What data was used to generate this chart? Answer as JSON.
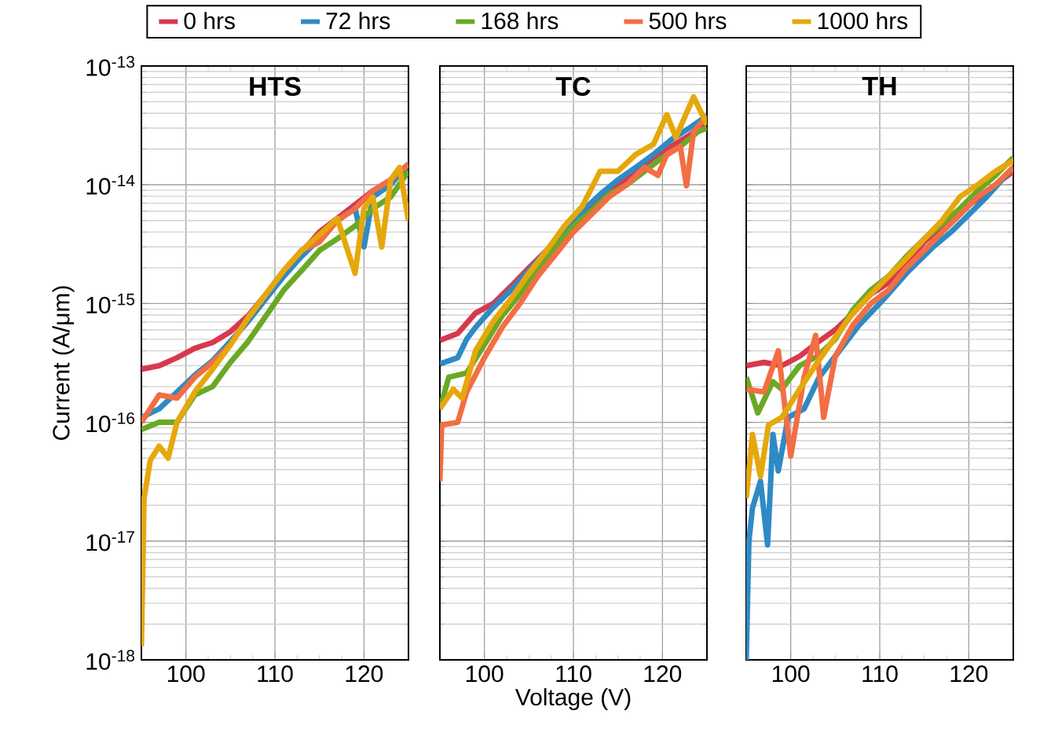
{
  "chart_data": [
    {
      "type": "line",
      "title": "HTS",
      "ylabel": "Current (A/μm)",
      "log": "y",
      "grid": true,
      "legend": "top",
      "xlim": [
        95,
        125
      ],
      "xticks": [
        100,
        110,
        120
      ],
      "ylim": [
        1e-18,
        1e-13
      ],
      "yticks": [
        {
          "value": 1e-18,
          "label": "10$^{-18}$"
        },
        {
          "value": 1e-17,
          "label": "10$^{-17}$"
        },
        {
          "value": 1e-16,
          "label": "10$^{-16}$"
        },
        {
          "value": 1e-15,
          "label": "10$^{-15}$"
        },
        {
          "value": 1e-14,
          "label": "10$^{-14}$"
        },
        {
          "value": 1e-13,
          "label": "10$^{-13}$"
        }
      ],
      "series": [
        {
          "name": "0 hrs",
          "color": "#d7394f",
          "x": [
            95,
            97,
            99,
            101,
            103,
            105,
            107,
            109,
            111,
            113,
            115,
            117,
            119,
            121,
            123,
            125
          ],
          "values": [
            2.8e-16,
            3e-16,
            3.5e-16,
            4.2e-16,
            4.7e-16,
            5.8e-16,
            7.9e-16,
            1.2e-15,
            1.8e-15,
            2.7e-15,
            4e-15,
            5.2e-15,
            6.8e-15,
            8.9e-15,
            1.1e-14,
            1.3e-14
          ]
        },
        {
          "name": "72 hrs",
          "color": "#2f8ac4",
          "x": [
            95,
            97,
            99,
            101,
            103,
            105,
            107,
            109,
            111,
            113,
            115,
            117,
            119,
            120,
            121,
            123,
            125
          ],
          "values": [
            1.1e-16,
            1.3e-16,
            1.8e-16,
            2.5e-16,
            3.3e-16,
            4.8e-16,
            7.1e-16,
            1.1e-15,
            1.7e-15,
            2.5e-15,
            3.5e-15,
            5e-15,
            6.3e-15,
            3e-15,
            7.9e-15,
            1e-14,
            1.5e-14
          ]
        },
        {
          "name": "168 hrs",
          "color": "#6aa924",
          "x": [
            95,
            97,
            99,
            101,
            103,
            105,
            107,
            109,
            111,
            113,
            115,
            117,
            119,
            121,
            123,
            125
          ],
          "values": [
            8.7e-17,
            1e-16,
            1e-16,
            1.7e-16,
            2e-16,
            3.2e-16,
            4.8e-16,
            7.9e-16,
            1.3e-15,
            1.9e-15,
            2.8e-15,
            3.5e-15,
            4.5e-15,
            6.3e-15,
            7.9e-15,
            1.3e-14
          ]
        },
        {
          "name": "500 hrs",
          "color": "#f26e44",
          "x": [
            95,
            97,
            99,
            101,
            103,
            105,
            107,
            109,
            111,
            113,
            115,
            117,
            119,
            121,
            123,
            125
          ],
          "values": [
            1e-16,
            1.7e-16,
            1.6e-16,
            2.4e-16,
            3.2e-16,
            4.5e-16,
            7.6e-16,
            1.2e-15,
            1.9e-15,
            2.8e-15,
            3.3e-15,
            5e-15,
            6.3e-15,
            8.9e-15,
            1.1e-14,
            1.5e-14
          ]
        },
        {
          "name": "1000 hrs",
          "color": "#e5a80c",
          "x": [
            95,
            95.3,
            96,
            97,
            98,
            99,
            101,
            103,
            105,
            107,
            109,
            111,
            113,
            115,
            117,
            119,
            120,
            121,
            122,
            123,
            124,
            125
          ],
          "values": [
            1.3e-18,
            2.3e-17,
            4.8e-17,
            6.3e-17,
            5e-17,
            1e-16,
            1.8e-16,
            2.8e-16,
            4.5e-16,
            7.6e-16,
            1.2e-15,
            1.9e-15,
            2.8e-15,
            3.8e-15,
            5.2e-15,
            1.8e-15,
            6.3e-15,
            7.9e-15,
            3e-15,
            1.1e-14,
            1.4e-14,
            5e-15
          ]
        }
      ]
    },
    {
      "type": "line",
      "title": "TC",
      "xlabel": "Voltage (V)",
      "log": "y",
      "grid": true,
      "tick_labels": "x",
      "xlim": [
        95,
        125
      ],
      "xticks": [
        100,
        110,
        120
      ],
      "ylim": [
        1e-18,
        1e-13
      ],
      "series": [
        {
          "color": "#d7394f",
          "x": [
            95,
            97,
            99,
            101,
            103,
            105,
            107,
            109,
            111,
            113,
            115,
            117,
            119,
            121,
            123,
            125
          ],
          "values": [
            4.9e-16,
            5.6e-16,
            8.3e-16,
            1e-15,
            1.4e-15,
            2e-15,
            2.8e-15,
            4.2e-15,
            5.6e-15,
            7.9e-15,
            1e-14,
            1.3e-14,
            1.7e-14,
            2.1e-14,
            2.6e-14,
            3.4e-14
          ]
        },
        {
          "color": "#2f8ac4",
          "x": [
            95,
            97,
            98,
            99,
            101,
            103,
            105,
            107,
            109,
            111,
            113,
            115,
            117,
            119,
            121,
            123,
            125
          ],
          "values": [
            3.1e-16,
            3.5e-16,
            5e-16,
            6.3e-16,
            9.3e-16,
            1.3e-15,
            1.9e-15,
            2.8e-15,
            4.2e-15,
            6e-15,
            8.3e-15,
            1.1e-14,
            1.4e-14,
            1.8e-14,
            2.4e-14,
            3e-14,
            3.8e-14
          ]
        },
        {
          "color": "#6aa924",
          "x": [
            95,
            96,
            98,
            100,
            102,
            104,
            106,
            108,
            110,
            112,
            114,
            116,
            118,
            120,
            122,
            124,
            125
          ],
          "values": [
            1.3e-16,
            2.4e-16,
            2.6e-16,
            4.5e-16,
            7.9e-16,
            1.2e-15,
            1.9e-15,
            3e-15,
            4.5e-15,
            6e-15,
            8.3e-15,
            1e-14,
            1.3e-14,
            1.7e-14,
            2.1e-14,
            2.8e-14,
            3e-14
          ]
        },
        {
          "color": "#f26e44",
          "x": [
            95,
            95.2,
            97,
            98,
            100,
            102,
            104,
            106,
            108,
            110,
            112,
            114,
            116,
            118,
            119.5,
            120.5,
            122,
            122.7,
            123.5,
            125
          ],
          "values": [
            3.2e-17,
            9.5e-17,
            1e-16,
            1.8e-16,
            3.5e-16,
            6.3e-16,
            1e-15,
            1.7e-15,
            2.6e-15,
            4e-15,
            5.6e-15,
            7.9e-15,
            1e-14,
            1.4e-14,
            1.2e-14,
            1.8e-14,
            2.1e-14,
            9.8e-15,
            2.8e-14,
            3.8e-14
          ]
        },
        {
          "color": "#e5a80c",
          "x": [
            95,
            96.5,
            97.5,
            99,
            101,
            103,
            105,
            107,
            109,
            111,
            113,
            115,
            117,
            119,
            120.5,
            121.5,
            123.5,
            125
          ],
          "values": [
            1.3e-16,
            1.9e-16,
            1.6e-16,
            4e-16,
            7.1e-16,
            1.1e-15,
            1.8e-15,
            2.8e-15,
            4.5e-15,
            6.6e-15,
            1.3e-14,
            1.3e-14,
            1.8e-14,
            2.2e-14,
            3.9e-14,
            2.5e-14,
            5.5e-14,
            3.2e-14
          ]
        }
      ]
    },
    {
      "type": "line",
      "title": "TH",
      "log": "y",
      "grid": true,
      "tick_labels": "x",
      "xlim": [
        95,
        125
      ],
      "xticks": [
        100,
        110,
        120
      ],
      "ylim": [
        1e-18,
        1e-13
      ],
      "series": [
        {
          "color": "#d7394f",
          "x": [
            95,
            97,
            99,
            101,
            103,
            105,
            107,
            109,
            111,
            113,
            115,
            117,
            119,
            121,
            123,
            125
          ],
          "values": [
            3e-16,
            3.2e-16,
            3e-16,
            3.6e-16,
            4.7e-16,
            6e-16,
            8.3e-16,
            1.2e-15,
            1.5e-15,
            2.2e-15,
            3.3e-15,
            4.5e-15,
            6e-15,
            7.6e-15,
            1e-14,
            1.3e-14
          ]
        },
        {
          "color": "#2f8ac4",
          "x": [
            95,
            95.3,
            95.7,
            96.6,
            97.4,
            98,
            98.6,
            99.7,
            101.5,
            103.2,
            105,
            107.7,
            110.5,
            113,
            116,
            118,
            120,
            122,
            125
          ],
          "values": [
            1e-18,
            1e-17,
            1.9e-17,
            3.2e-17,
            9.3e-18,
            7.9e-17,
            3.9e-17,
            1.1e-16,
            1.3e-16,
            2.4e-16,
            3.6e-16,
            6.6e-16,
            1.1e-15,
            1.8e-15,
            3e-15,
            4e-15,
            5.6e-15,
            7.9e-15,
            1.4e-14
          ]
        },
        {
          "color": "#6aa924",
          "x": [
            95,
            96.3,
            98,
            99,
            101,
            103,
            105,
            107,
            109,
            111,
            113,
            115,
            117,
            119,
            121,
            123,
            125
          ],
          "values": [
            2.4e-16,
            1.2e-16,
            2.2e-16,
            1.9e-16,
            3e-16,
            3.6e-16,
            5e-16,
            8.9e-16,
            1.3e-15,
            1.7e-15,
            2.5e-15,
            3.5e-15,
            4.7e-15,
            6.3e-15,
            8.9e-15,
            1.2e-14,
            1.7e-14
          ]
        },
        {
          "color": "#f26e44",
          "x": [
            95,
            97,
            98.6,
            100,
            101.5,
            102.8,
            103.7,
            105,
            107,
            109,
            111,
            113,
            115,
            117,
            119,
            121,
            123,
            125
          ],
          "values": [
            1.9e-16,
            1.8e-16,
            4e-16,
            5.2e-17,
            2.4e-16,
            5.4e-16,
            1.1e-16,
            3.6e-16,
            6.6e-16,
            1e-15,
            1.3e-15,
            2e-15,
            2.8e-15,
            4e-15,
            5.6e-15,
            7.9e-15,
            1e-14,
            1.4e-14
          ]
        },
        {
          "color": "#e5a80c",
          "x": [
            95,
            95.7,
            96.6,
            97.5,
            99,
            101,
            103,
            105,
            107,
            109,
            111,
            113,
            115,
            117,
            119,
            121,
            123,
            125
          ],
          "values": [
            2.3e-17,
            7.9e-17,
            3.5e-17,
            9.5e-17,
            1.1e-16,
            1.9e-16,
            3.2e-16,
            5.2e-16,
            8.3e-16,
            1.2e-15,
            1.7e-15,
            2.4e-15,
            3.5e-15,
            5e-15,
            7.9e-15,
            1e-14,
            1.3e-14,
            1.6e-14
          ]
        }
      ]
    }
  ]
}
